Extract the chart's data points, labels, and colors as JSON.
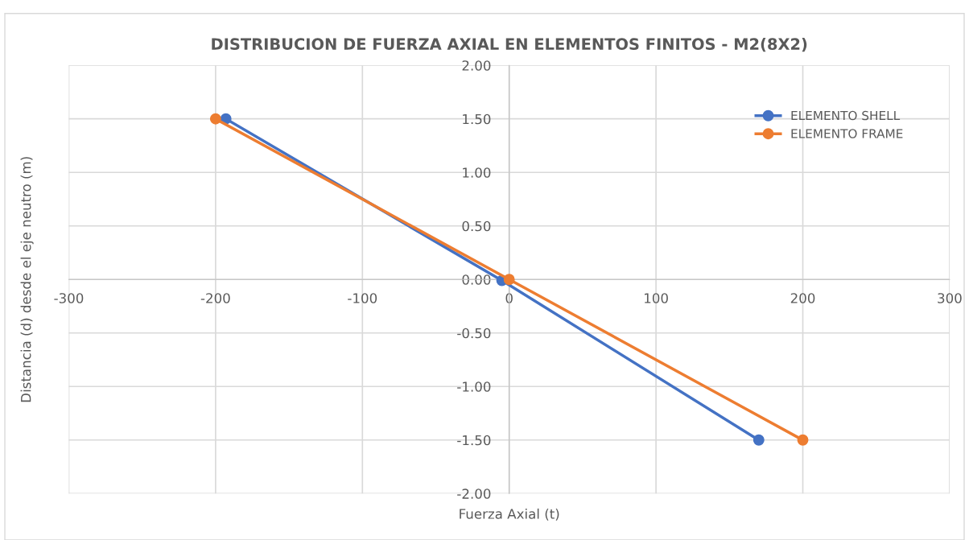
{
  "chart_data": {
    "type": "line",
    "title": "DISTRIBUCION DE FUERZA AXIAL EN ELEMENTOS FINITOS - M2(8X2)",
    "xlabel": "Fuerza Axial (t)",
    "ylabel": "Distancia (d) desde el eje neutro (m)",
    "series": [
      {
        "name": "ELEMENTO SHELL",
        "color": "#4472c4",
        "x": [
          -193,
          -5,
          170
        ],
        "values": [
          1.5,
          -0.01,
          -1.5
        ]
      },
      {
        "name": "ELEMENTO FRAME",
        "color": "#ed7d31",
        "x": [
          -200,
          0,
          200
        ],
        "values": [
          1.5,
          0,
          -1.5
        ]
      }
    ],
    "xlim": [
      -300,
      300
    ],
    "xticks": [
      -300,
      -200,
      -100,
      0,
      100,
      200,
      300
    ],
    "ylim": [
      -2,
      2
    ],
    "yticks": [
      {
        "value": -2,
        "label": "-2.00"
      },
      {
        "value": -1.5,
        "label": "-1.50"
      },
      {
        "value": -1,
        "label": "-1.00"
      },
      {
        "value": -0.5,
        "label": "-0.50"
      },
      {
        "value": 0,
        "label": "0.00"
      },
      {
        "value": 0.5,
        "label": "0.50"
      },
      {
        "value": 1,
        "label": "1.00"
      },
      {
        "value": 1.5,
        "label": "1.50"
      },
      {
        "value": 2,
        "label": "2.00"
      }
    ],
    "grid": true,
    "legend": "top right",
    "marker": "circle",
    "line_style": "solid"
  }
}
